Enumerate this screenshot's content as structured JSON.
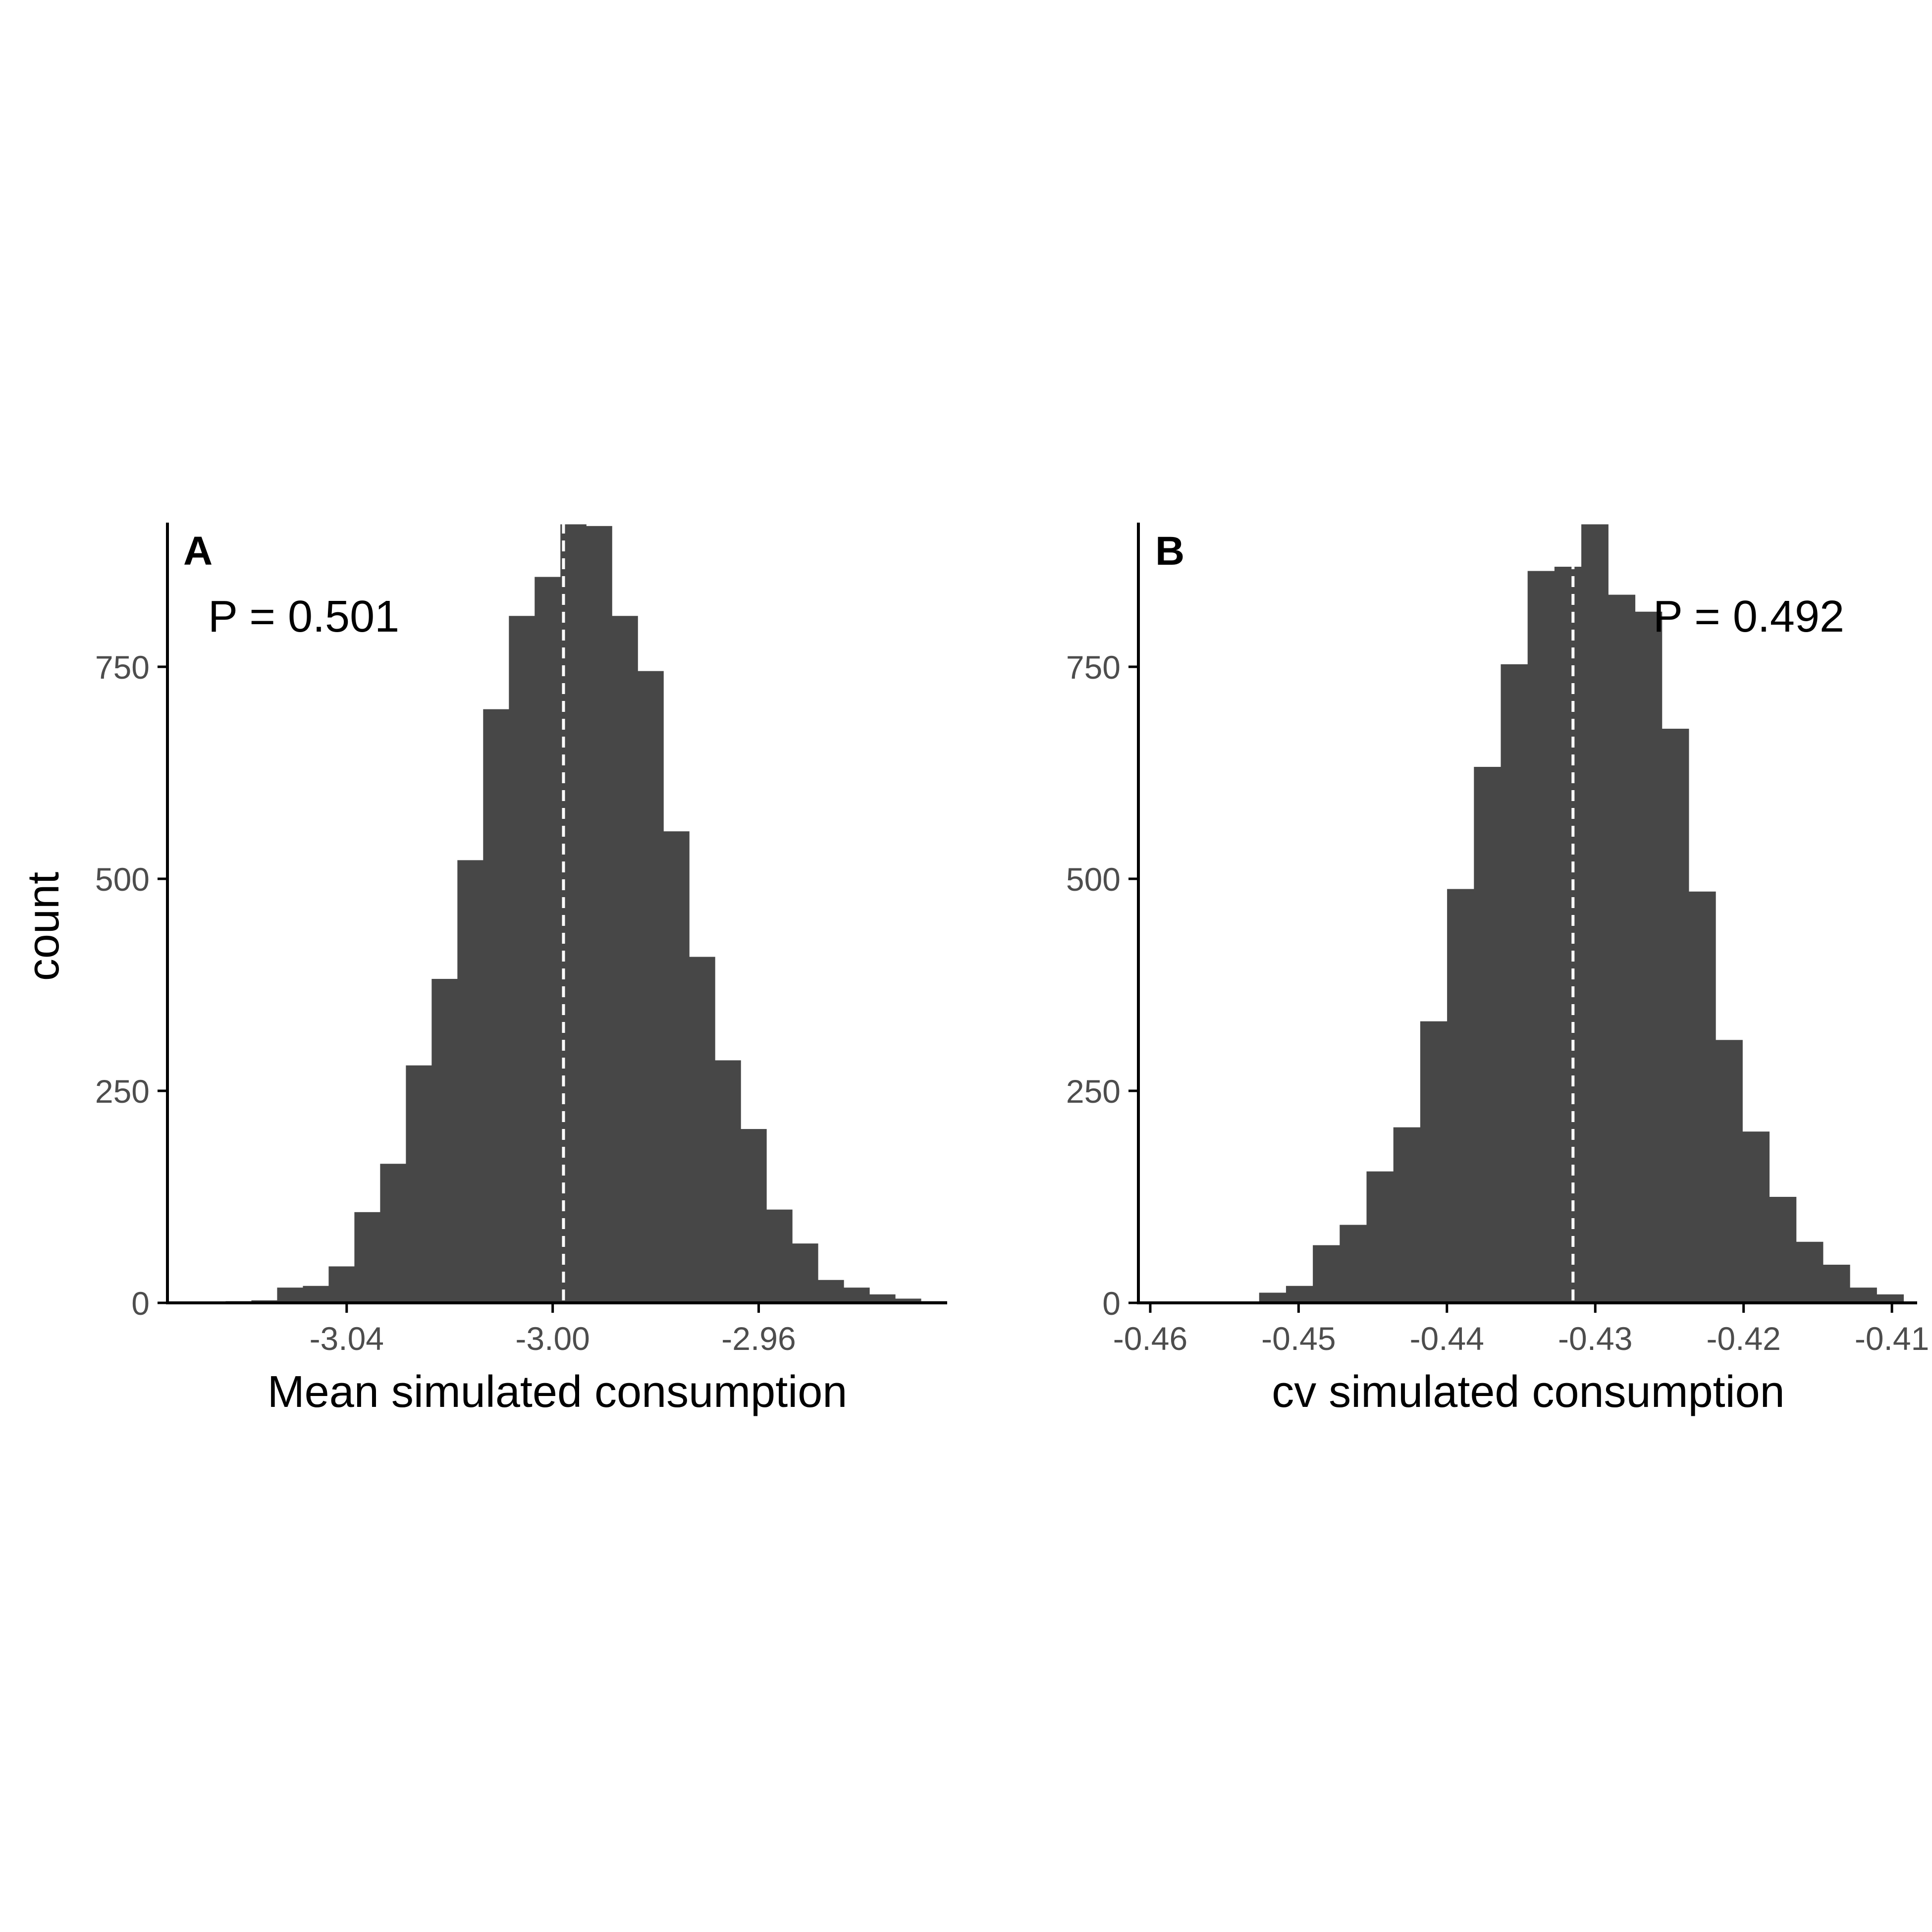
{
  "colors": {
    "bar": "#474747",
    "axis": "#000000",
    "tick_text": "#4d4d4d",
    "ref_line": "#ffffff"
  },
  "chart_data": [
    {
      "type": "bar",
      "panel_tag": "A",
      "annotation": "P = 0.501",
      "xlabel": "Mean simulated consumption",
      "ylabel": "count",
      "xlim": [
        -3.0748,
        -2.9234
      ],
      "ylim": [
        0,
        920
      ],
      "xticks": [
        -3.04,
        -3.0,
        -2.96
      ],
      "xtick_labels": [
        "-3.04",
        "-3.00",
        "-2.96"
      ],
      "yticks": [
        0,
        250,
        500,
        750
      ],
      "ytick_labels": [
        "0",
        "250",
        "500",
        "750"
      ],
      "bin_start": -3.0685,
      "bin_width": 0.005,
      "counts": [
        0,
        2,
        3,
        18,
        20,
        43,
        107,
        164,
        280,
        382,
        522,
        700,
        810,
        856,
        918,
        916,
        810,
        745,
        556,
        408,
        286,
        205,
        110,
        70,
        27,
        18,
        10,
        5,
        2
      ],
      "reference_line": -2.9979,
      "grid": false
    },
    {
      "type": "bar",
      "panel_tag": "B",
      "annotation": "P = 0.492",
      "xlabel": "cv simulated consumption",
      "ylabel": "",
      "xlim": [
        -0.4608,
        -0.4083
      ],
      "ylim": [
        0,
        920
      ],
      "xticks": [
        -0.46,
        -0.45,
        -0.44,
        -0.43,
        -0.42,
        -0.41
      ],
      "xtick_labels": [
        "-0.46",
        "-0.45",
        "-0.44",
        "-0.43",
        "-0.42",
        "-0.41"
      ],
      "yticks": [
        0,
        250,
        500,
        750
      ],
      "ytick_labels": [
        "0",
        "250",
        "500",
        "750"
      ],
      "bin_start": -0.4599,
      "bin_width": 0.00181,
      "counts": [
        0,
        0,
        0,
        0,
        12,
        20,
        68,
        92,
        155,
        207,
        332,
        488,
        632,
        753,
        863,
        868,
        918,
        835,
        815,
        677,
        485,
        310,
        202,
        125,
        72,
        45,
        18,
        10
      ],
      "reference_line": -0.4315,
      "grid": false
    }
  ]
}
